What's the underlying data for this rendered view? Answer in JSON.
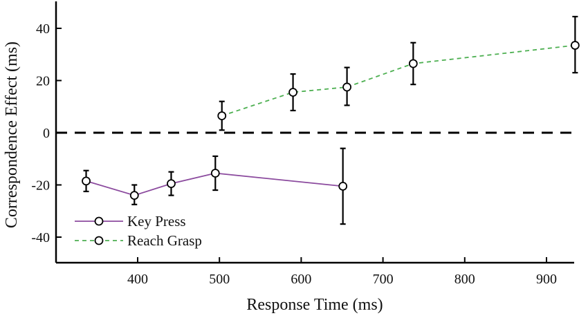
{
  "chart_data": {
    "type": "line",
    "title": "",
    "xlabel": "Response Time (ms)",
    "ylabel": "Correspondence Effect (ms)",
    "xlim": [
      305,
      955
    ],
    "ylim": [
      -50,
      50
    ],
    "xticks": [
      400,
      500,
      600,
      700,
      800,
      900
    ],
    "yticks": [
      -40,
      -20,
      0,
      20,
      40
    ],
    "grid": false,
    "legend_position": "bottom-left",
    "reference_line": {
      "y": 0,
      "style": "dashed",
      "color": "#000000"
    },
    "series": [
      {
        "name": "Key Press",
        "color": "#8b4a9e",
        "line_style": "solid",
        "marker": "open-circle",
        "x": [
          337,
          396,
          441,
          495,
          651
        ],
        "y": [
          -18.5,
          -24,
          -19.5,
          -15.5,
          -20.5
        ],
        "err_low": [
          -22.5,
          -27.5,
          -24,
          -22,
          -35
        ],
        "err_high": [
          -14.5,
          -20,
          -15,
          -9,
          -6
        ]
      },
      {
        "name": "Reach Grasp",
        "color": "#4caf50",
        "line_style": "dashed",
        "marker": "open-circle",
        "x": [
          503,
          590,
          656,
          737,
          935
        ],
        "y": [
          6.5,
          15.5,
          17.5,
          26.5,
          33.5
        ],
        "err_low": [
          1,
          8.5,
          10.5,
          18.5,
          23
        ],
        "err_high": [
          12,
          22.5,
          25,
          34.5,
          44.5
        ]
      }
    ]
  }
}
